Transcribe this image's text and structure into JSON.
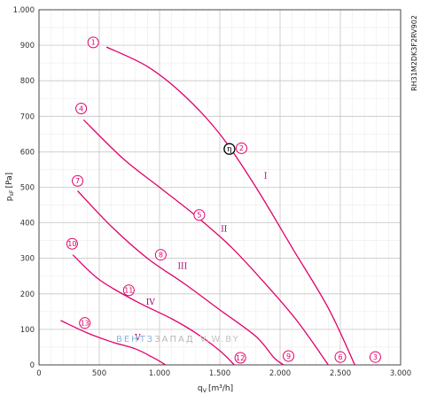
{
  "chart_data": {
    "type": "line",
    "xlabel_main": "q",
    "xlabel_sub": "V",
    "xlabel_unit": "[m³/h]",
    "ylabel_main": "p",
    "ylabel_sub": "sF",
    "ylabel_unit": "[Pa]",
    "xlim": [
      0,
      3000
    ],
    "ylim": [
      0,
      1000
    ],
    "x_ticks": [
      {
        "value": 0,
        "label": "0"
      },
      {
        "value": 500,
        "label": "500"
      },
      {
        "value": 1000,
        "label": "1.000"
      },
      {
        "value": 1500,
        "label": "1.500"
      },
      {
        "value": 2000,
        "label": "2.000"
      },
      {
        "value": 2500,
        "label": "2.500"
      },
      {
        "value": 3000,
        "label": "3.000"
      }
    ],
    "y_ticks": [
      {
        "value": 0,
        "label": "0"
      },
      {
        "value": 100,
        "label": "100"
      },
      {
        "value": 200,
        "label": "200"
      },
      {
        "value": 300,
        "label": "300"
      },
      {
        "value": 400,
        "label": "400"
      },
      {
        "value": 500,
        "label": "500"
      },
      {
        "value": 600,
        "label": "600"
      },
      {
        "value": 700,
        "label": "700"
      },
      {
        "value": 800,
        "label": "800"
      },
      {
        "value": 900,
        "label": "900"
      },
      {
        "value": 1000,
        "label": "1.000"
      }
    ],
    "x_minor_step": 100,
    "y_minor_step": 50,
    "grid": true,
    "line_color": "#e2006a",
    "side_id": "RH31M2DK3F2RV902",
    "series": [
      {
        "points": [
          [
            560,
            895
          ],
          [
            900,
            840
          ],
          [
            1200,
            760
          ],
          [
            1500,
            650
          ],
          [
            1800,
            500
          ],
          [
            2100,
            330
          ],
          [
            2400,
            160
          ],
          [
            2620,
            0
          ]
        ]
      },
      {
        "points": [
          [
            370,
            690
          ],
          [
            700,
            580
          ],
          [
            1000,
            500
          ],
          [
            1300,
            420
          ],
          [
            1600,
            330
          ],
          [
            1900,
            220
          ],
          [
            2150,
            120
          ],
          [
            2400,
            0
          ]
        ]
      },
      {
        "points": [
          [
            320,
            490
          ],
          [
            600,
            390
          ],
          [
            900,
            300
          ],
          [
            1200,
            230
          ],
          [
            1500,
            155
          ],
          [
            1800,
            80
          ],
          [
            1950,
            20
          ],
          [
            2030,
            0
          ]
        ]
      },
      {
        "points": [
          [
            280,
            310
          ],
          [
            500,
            240
          ],
          [
            800,
            180
          ],
          [
            1100,
            130
          ],
          [
            1300,
            90
          ],
          [
            1500,
            40
          ],
          [
            1620,
            0
          ]
        ]
      },
      {
        "points": [
          [
            180,
            125
          ],
          [
            400,
            90
          ],
          [
            600,
            65
          ],
          [
            800,
            45
          ],
          [
            950,
            20
          ],
          [
            1050,
            0
          ]
        ]
      }
    ],
    "curve_markers": [
      {
        "label": "1",
        "x": 450,
        "y": 908
      },
      {
        "label": "2",
        "x": 1680,
        "y": 610
      },
      {
        "label": "3",
        "x": 2790,
        "y": 22
      },
      {
        "label": "4",
        "x": 350,
        "y": 722
      },
      {
        "label": "5",
        "x": 1330,
        "y": 422
      },
      {
        "label": "6",
        "x": 2500,
        "y": 22
      },
      {
        "label": "7",
        "x": 320,
        "y": 518
      },
      {
        "label": "8",
        "x": 1010,
        "y": 310
      },
      {
        "label": "9",
        "x": 2070,
        "y": 25
      },
      {
        "label": "10",
        "x": 275,
        "y": 341
      },
      {
        "label": "11",
        "x": 745,
        "y": 210
      },
      {
        "label": "12",
        "x": 1670,
        "y": 20
      },
      {
        "label": "13",
        "x": 380,
        "y": 118
      }
    ],
    "operating_point": {
      "label": "η",
      "x": 1580,
      "y": 608
    },
    "region_labels": [
      {
        "label": "I",
        "x": 1880,
        "y": 525
      },
      {
        "label": "II",
        "x": 1535,
        "y": 375
      },
      {
        "label": "III",
        "x": 1190,
        "y": 270
      },
      {
        "label": "IV",
        "x": 925,
        "y": 170
      },
      {
        "label": "V",
        "x": 820,
        "y": 70
      }
    ]
  },
  "watermark": {
    "part1": "ВЕНТЗ",
    "part2": "ЗАПАД",
    "part3": "V.W.BY"
  }
}
